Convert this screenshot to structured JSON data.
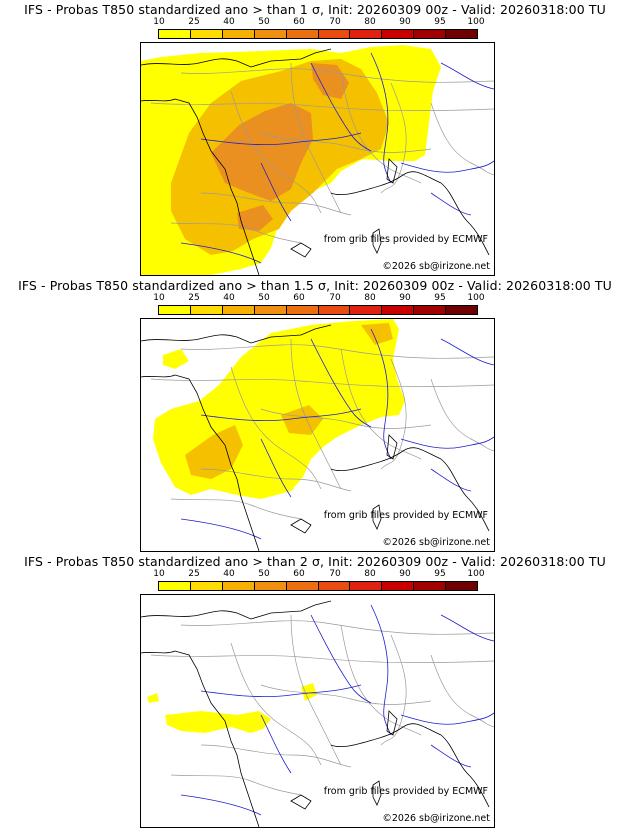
{
  "panels": [
    {
      "title": "IFS - Probas T850  standardized ano > than 1 σ, Init: 20260309 00z - Valid: 20260318:00 TU",
      "threshold": "1 σ",
      "source_credit": "from grib files provided by ECMWF",
      "copyright": "©2026 sb@irizone.net"
    },
    {
      "title": "IFS - Probas T850  standardized ano > than 1.5 σ, Init: 20260309 00z - Valid: 20260318:00 TU",
      "threshold": "1.5 σ",
      "source_credit": "from grib files provided by ECMWF",
      "copyright": "©2026 sb@irizone.net"
    },
    {
      "title": "IFS - Probas T850  standardized ano > than 2 σ, Init: 20260309 00z - Valid: 20260318:00 TU",
      "threshold": "2 σ",
      "source_credit": "from grib files provided by ECMWF",
      "copyright": "©2026 sb@irizone.net"
    }
  ],
  "colorbar": {
    "labels": [
      "10",
      "25",
      "40",
      "50",
      "60",
      "70",
      "80",
      "90",
      "95",
      "100"
    ],
    "colors": [
      "#ffff00",
      "#ffdc00",
      "#f5b000",
      "#f09010",
      "#ec7010",
      "#e84c10",
      "#e02010",
      "#c80000",
      "#a00000",
      "#700000"
    ]
  },
  "colors": {
    "coast": "#000000",
    "borders": "#9a9a9a",
    "rivers": "#1e1ecd",
    "prob_low": "#ffff00",
    "prob_mid": "#f5c000",
    "prob_high": "#ea9020"
  }
}
